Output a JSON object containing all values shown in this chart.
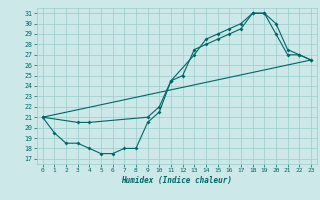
{
  "xlabel": "Humidex (Indice chaleur)",
  "ylabel": "",
  "bg_color": "#cce8e8",
  "grid_color": "#99cccc",
  "line_color": "#006666",
  "xlim": [
    -0.5,
    23.5
  ],
  "ylim": [
    16.5,
    31.5
  ],
  "xticks": [
    0,
    1,
    2,
    3,
    4,
    5,
    6,
    7,
    8,
    9,
    10,
    11,
    12,
    13,
    14,
    15,
    16,
    17,
    18,
    19,
    20,
    21,
    22,
    23
  ],
  "yticks": [
    17,
    18,
    19,
    20,
    21,
    22,
    23,
    24,
    25,
    26,
    27,
    28,
    29,
    30,
    31
  ],
  "line1_x": [
    0,
    1,
    2,
    3,
    4,
    5,
    6,
    7,
    8,
    9,
    10,
    11,
    12,
    13,
    14,
    15,
    16,
    17,
    18,
    19,
    20,
    21,
    22,
    23
  ],
  "line1_y": [
    21.0,
    19.5,
    18.5,
    18.5,
    18.0,
    17.5,
    17.5,
    18.0,
    18.0,
    20.5,
    21.5,
    24.5,
    25.0,
    27.5,
    28.0,
    28.5,
    29.0,
    29.5,
    31.0,
    31.0,
    29.0,
    27.0,
    27.0,
    26.5
  ],
  "line2_x": [
    0,
    3,
    4,
    9,
    10,
    11,
    13,
    14,
    15,
    16,
    17,
    18,
    19,
    20,
    21,
    22,
    23
  ],
  "line2_y": [
    21.0,
    20.5,
    20.5,
    21.0,
    22.0,
    24.5,
    27.0,
    28.5,
    29.0,
    29.5,
    30.0,
    31.0,
    31.0,
    30.0,
    27.5,
    27.0,
    26.5
  ],
  "line3_x": [
    0,
    23
  ],
  "line3_y": [
    21.0,
    26.5
  ]
}
